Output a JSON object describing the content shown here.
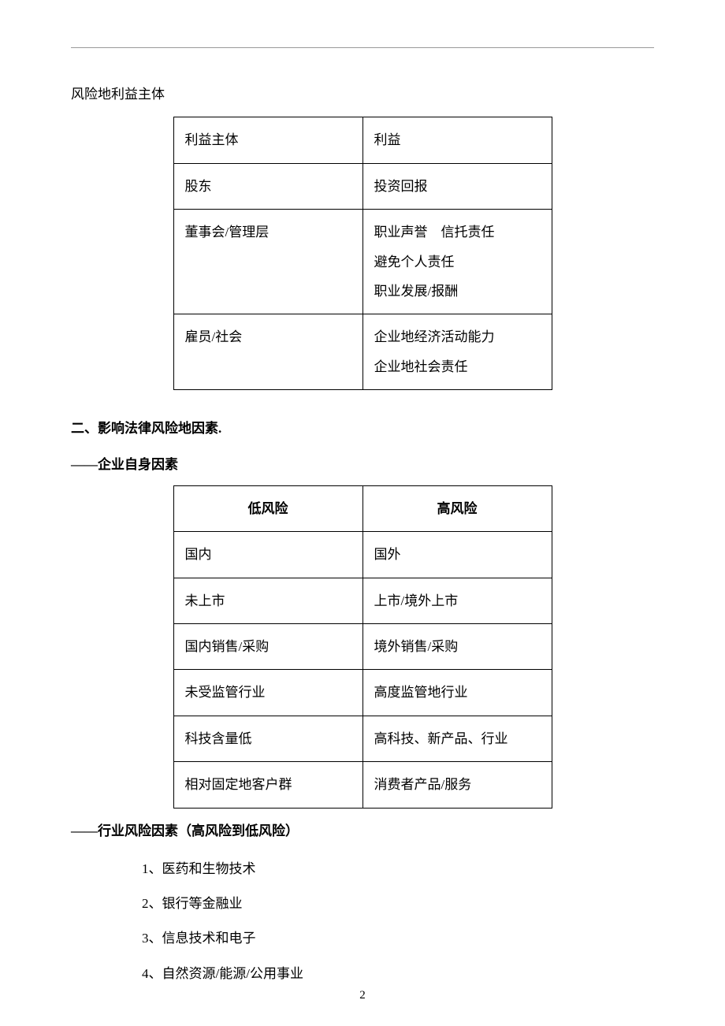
{
  "topText": "风险地利益主体",
  "table1": {
    "columns": [
      "利益主体",
      "利益"
    ],
    "rows": [
      [
        "股东",
        "投资回报"
      ],
      [
        "董事会/管理层",
        "职业声誉　信托责任\n避免个人责任\n职业发展/报酬"
      ],
      [
        "雇员/社会",
        "企业地经济活动能力\n企业地社会责任"
      ]
    ]
  },
  "heading2": "二、影响法律风险地因素.",
  "subheading1": "——企业自身因素",
  "table2": {
    "headers": [
      "低风险",
      "高风险"
    ],
    "rows": [
      [
        "国内",
        "国外"
      ],
      [
        "未上市",
        "上市/境外上市"
      ],
      [
        "国内销售/采购",
        "境外销售/采购"
      ],
      [
        "未受监管行业",
        "高度监管地行业"
      ],
      [
        "科技含量低",
        "高科技、新产品、行业"
      ],
      [
        "相对固定地客户群",
        "消费者产品/服务"
      ]
    ]
  },
  "subheading2": "——行业风险因素（高风险到低风险）",
  "list": [
    "1、医药和生物技术",
    "2、银行等金融业",
    "3、信息技术和电子",
    "4、自然资源/能源/公用事业"
  ],
  "pageNumber": "2"
}
